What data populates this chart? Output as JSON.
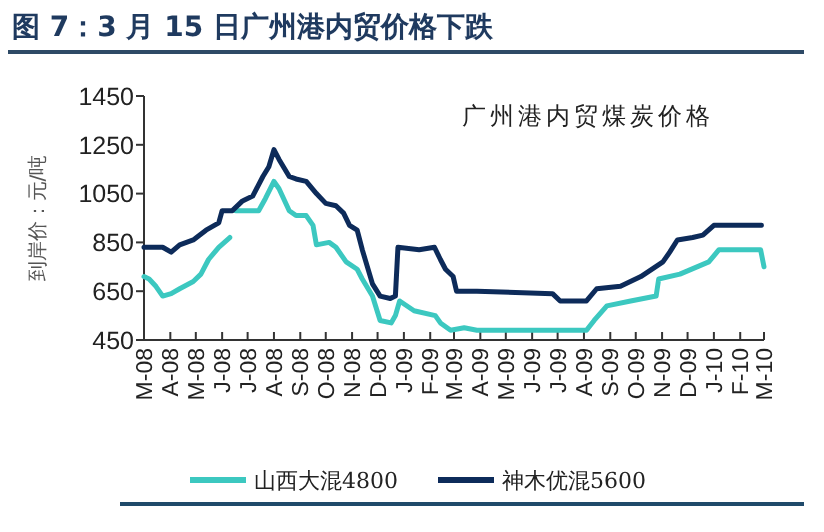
{
  "chart_data": {
    "type": "line",
    "title": "图 7：3 月 15 日广州港内贸价格下跌",
    "subtitle": "广州港内贸煤炭价格",
    "ylabel": "到岸价：元/吨",
    "xlim": [
      "2008-03-01",
      "2010-03-01"
    ],
    "ylim": [
      450,
      1450
    ],
    "yticks": [
      450,
      650,
      850,
      1050,
      1250,
      1450
    ],
    "xticks": [
      {
        "value": "2008-03-01",
        "label": "M-08"
      },
      {
        "value": "2008-04-01",
        "label": "A-08"
      },
      {
        "value": "2008-05-01",
        "label": "M-08"
      },
      {
        "value": "2008-06-01",
        "label": "J-08"
      },
      {
        "value": "2008-07-01",
        "label": "J-08"
      },
      {
        "value": "2008-08-01",
        "label": "A-08"
      },
      {
        "value": "2008-09-01",
        "label": "S-08"
      },
      {
        "value": "2008-10-01",
        "label": "O-08"
      },
      {
        "value": "2008-11-01",
        "label": "N-08"
      },
      {
        "value": "2008-12-01",
        "label": "D-08"
      },
      {
        "value": "2009-01-01",
        "label": "J-09"
      },
      {
        "value": "2009-02-01",
        "label": "F-09"
      },
      {
        "value": "2009-03-01",
        "label": "M-09"
      },
      {
        "value": "2009-04-01",
        "label": "A-09"
      },
      {
        "value": "2009-05-01",
        "label": "M-09"
      },
      {
        "value": "2009-06-01",
        "label": "J-09"
      },
      {
        "value": "2009-07-01",
        "label": "J-09"
      },
      {
        "value": "2009-08-01",
        "label": "A-09"
      },
      {
        "value": "2009-09-01",
        "label": "S-09"
      },
      {
        "value": "2009-10-01",
        "label": "O-09"
      },
      {
        "value": "2009-11-01",
        "label": "N-09"
      },
      {
        "value": "2009-12-01",
        "label": "D-09"
      },
      {
        "value": "2010-01-01",
        "label": "J-10"
      },
      {
        "value": "2010-02-01",
        "label": "F-10"
      },
      {
        "value": "2010-03-01",
        "label": "M-10"
      }
    ],
    "legend": "bottom",
    "line_style": "solid",
    "series": [
      {
        "name": "山西大混4800",
        "color": "#3cc8c0",
        "x": [
          "2008-03-01",
          "2008-03-07",
          "2008-03-15",
          "2008-03-23",
          "2008-04-02",
          "2008-04-12",
          "2008-04-28",
          "2008-05-07",
          "2008-05-16",
          "2008-05-28",
          "2008-06-10",
          null,
          "2008-06-17",
          "2008-07-14",
          "2008-07-22",
          "2008-08-01",
          "2008-08-07",
          "2008-08-19",
          "2008-08-27",
          "2008-09-08",
          "2008-09-16",
          "2008-09-20",
          "2008-10-05",
          "2008-10-13",
          "2008-10-25",
          "2008-11-07",
          "2008-11-13",
          "2008-11-25",
          "2008-12-04",
          "2008-12-17",
          "2008-12-22",
          "2008-12-27",
          "2009-01-13",
          "2009-02-07",
          "2009-02-13",
          "2009-02-25",
          "2009-03-13",
          "2009-03-28",
          "2009-07-25",
          "2009-08-04",
          "2009-08-13",
          "2009-08-28",
          "2009-09-25",
          "2009-10-25",
          "2009-10-28",
          "2009-11-22",
          "2009-12-26",
          "2010-01-07",
          "2010-02-25",
          "2010-03-01"
        ],
        "values": [
          710,
          700,
          670,
          630,
          640,
          660,
          690,
          720,
          780,
          830,
          870,
          null,
          980,
          980,
          1030,
          1100,
          1070,
          980,
          960,
          960,
          920,
          840,
          850,
          830,
          770,
          740,
          700,
          630,
          530,
          520,
          550,
          610,
          570,
          550,
          520,
          490,
          500,
          490,
          490,
          490,
          530,
          590,
          610,
          630,
          700,
          720,
          770,
          820,
          820,
          750
        ]
      },
      {
        "name": "神木优混5600",
        "color": "#0d2b5a",
        "x": [
          "2008-03-01",
          "2008-03-15",
          "2008-03-23",
          "2008-04-02",
          "2008-04-12",
          "2008-04-28",
          "2008-05-13",
          "2008-05-28",
          "2008-06-01",
          "2008-06-13",
          "2008-06-25",
          "2008-07-07",
          "2008-07-19",
          "2008-07-26",
          "2008-08-01",
          "2008-08-07",
          "2008-08-19",
          "2008-08-27",
          "2008-09-08",
          "2008-09-20",
          "2008-10-01",
          "2008-10-13",
          "2008-10-22",
          "2008-10-29",
          "2008-11-07",
          "2008-11-13",
          "2008-11-25",
          "2008-12-04",
          "2008-12-16",
          "2008-12-22",
          "2008-12-25",
          "2009-01-19",
          "2009-02-06",
          "2009-02-13",
          "2009-02-19",
          "2009-02-28",
          "2009-03-04",
          "2009-03-28",
          "2009-06-25",
          "2009-07-04",
          "2009-08-04",
          "2009-08-16",
          "2009-09-13",
          "2009-10-07",
          "2009-11-02",
          "2009-11-10",
          "2009-11-19",
          "2009-12-07",
          "2009-12-19",
          "2010-01-01",
          "2010-01-25",
          "2010-02-26"
        ],
        "values": [
          830,
          830,
          830,
          810,
          840,
          860,
          900,
          930,
          980,
          980,
          1020,
          1040,
          1120,
          1160,
          1230,
          1190,
          1120,
          1110,
          1100,
          1050,
          1010,
          1000,
          970,
          920,
          900,
          820,
          680,
          630,
          620,
          630,
          830,
          820,
          830,
          780,
          740,
          710,
          650,
          650,
          640,
          610,
          610,
          660,
          670,
          710,
          770,
          810,
          860,
          870,
          880,
          920,
          920,
          920
        ]
      }
    ]
  }
}
